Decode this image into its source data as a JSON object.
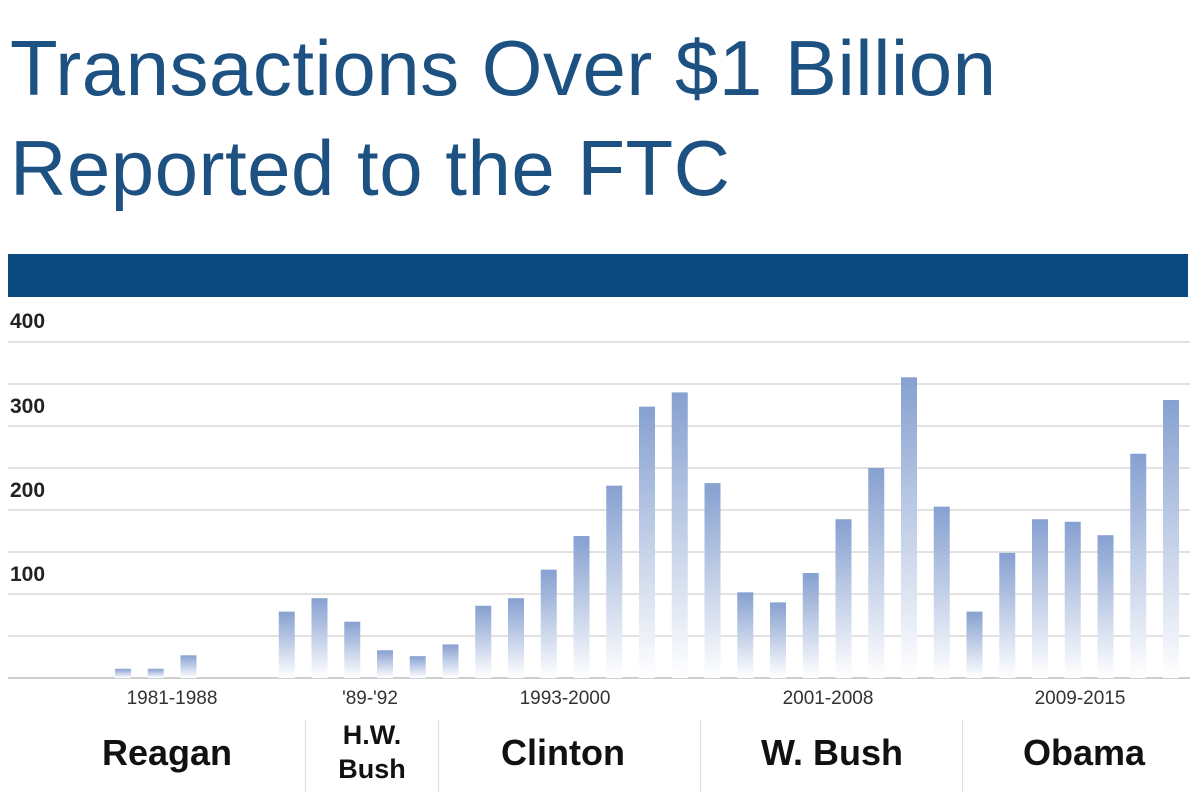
{
  "chart_data": {
    "type": "bar",
    "title_line1": "Transactions Over $1 Billion",
    "title_line2": "Reported to the FTC",
    "ylim": [
      0,
      400
    ],
    "yticks": [
      "100",
      "200",
      "300",
      "400"
    ],
    "grid": true,
    "values": [
      11,
      11,
      27,
      null,
      null,
      79,
      95,
      67,
      33,
      26,
      40,
      86,
      95,
      129,
      169,
      229,
      323,
      340,
      232,
      102,
      90,
      125,
      189,
      250,
      358,
      204,
      79,
      149,
      189,
      186,
      170,
      267,
      331
    ],
    "groups": [
      {
        "period": "1981-1988",
        "president": "Reagan"
      },
      {
        "period": "'89-'92",
        "president_line1": "H.W.",
        "president_line2": "Bush"
      },
      {
        "period": "1993-2000",
        "president": "Clinton"
      },
      {
        "period": "2001-2008",
        "president": "W. Bush"
      },
      {
        "period": "2009-2015",
        "president": "Obama"
      }
    ],
    "colors": {
      "title": "#1c5181",
      "band": "#0b4a7e",
      "bar_top": "#86a0d0",
      "bar_bottom": "#ffffff"
    }
  }
}
